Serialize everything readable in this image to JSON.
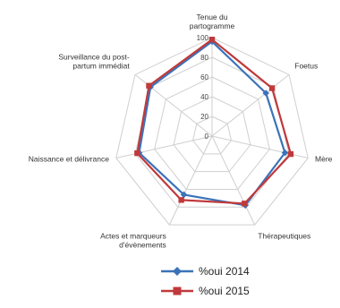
{
  "chart_data": {
    "type": "radar",
    "axes": [
      {
        "lines": [
          "Tenue du",
          "partogramme"
        ]
      },
      {
        "lines": [
          "Foetus"
        ]
      },
      {
        "lines": [
          "Mère"
        ]
      },
      {
        "lines": [
          "Thérapeutiques"
        ]
      },
      {
        "lines": [
          "Actes et marqueurs",
          "d'évènements"
        ]
      },
      {
        "lines": [
          "Naissance et délivrance"
        ]
      },
      {
        "lines": [
          "Surveillance du post-",
          "partum immédiat"
        ]
      }
    ],
    "ticks": [
      0,
      20,
      40,
      60,
      80,
      100
    ],
    "range": [
      0,
      100
    ],
    "series": [
      {
        "name": "%oui 2014",
        "color": "#3b73b9",
        "marker": "diamond",
        "values": [
          96,
          70,
          76,
          78,
          66,
          76,
          80
        ]
      },
      {
        "name": "%oui 2015",
        "color": "#c0393b",
        "marker": "square",
        "values": [
          98,
          78,
          82,
          76,
          72,
          78,
          82
        ]
      }
    ],
    "legend_position": "bottom"
  }
}
